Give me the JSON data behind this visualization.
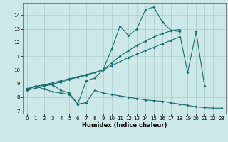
{
  "title": "",
  "xlabel": "Humidex (Indice chaleur)",
  "bg_color": "#cce8e8",
  "grid_color": "#aacaca",
  "line_color": "#1a6b6b",
  "x_values": [
    0,
    1,
    2,
    3,
    4,
    5,
    6,
    7,
    8,
    9,
    10,
    11,
    12,
    13,
    14,
    15,
    16,
    17,
    18,
    19,
    20,
    21,
    22,
    23
  ],
  "line_max": [
    8.6,
    8.8,
    8.9,
    8.9,
    8.5,
    8.3,
    7.5,
    9.2,
    9.4,
    10.0,
    11.5,
    13.2,
    12.5,
    13.0,
    14.4,
    14.6,
    13.5,
    12.9,
    12.8,
    9.8,
    12.8,
    8.8,
    null,
    null
  ],
  "line_mean": [
    8.6,
    8.75,
    8.9,
    9.05,
    9.2,
    9.35,
    9.5,
    9.65,
    9.8,
    10.0,
    10.5,
    11.0,
    11.4,
    11.8,
    12.1,
    12.4,
    12.65,
    12.85,
    12.95,
    null,
    null,
    null,
    null,
    null
  ],
  "line_trend": [
    8.5,
    8.65,
    8.8,
    8.95,
    9.1,
    9.3,
    9.45,
    9.6,
    9.8,
    10.0,
    10.3,
    10.6,
    10.9,
    11.15,
    11.4,
    11.65,
    11.9,
    12.15,
    12.4,
    null,
    null,
    null,
    null,
    null
  ],
  "line_min": [
    8.6,
    8.8,
    8.6,
    8.4,
    8.3,
    8.2,
    7.5,
    7.6,
    8.5,
    8.3,
    8.2,
    8.1,
    8.0,
    7.9,
    7.8,
    7.75,
    7.7,
    7.6,
    7.5,
    7.4,
    7.3,
    7.25,
    7.2,
    7.2
  ],
  "xlim": [
    -0.5,
    23.5
  ],
  "ylim": [
    6.8,
    14.9
  ],
  "yticks": [
    7,
    8,
    9,
    10,
    11,
    12,
    13,
    14
  ],
  "xticks": [
    0,
    1,
    2,
    3,
    4,
    5,
    6,
    7,
    8,
    9,
    10,
    11,
    12,
    13,
    14,
    15,
    16,
    17,
    18,
    19,
    20,
    21,
    22,
    23
  ],
  "xlabel_fontsize": 6.0,
  "tick_fontsize": 5.0,
  "lw": 0.8,
  "ms": 2.0
}
